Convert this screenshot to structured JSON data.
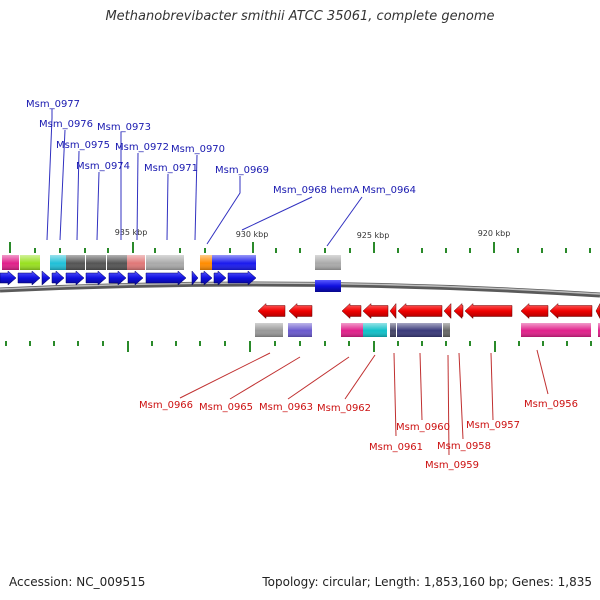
{
  "title": "Methanobrevibacter smithii ATCC 35061, complete genome",
  "footer": {
    "accession": "Accession: NC_009515",
    "topology": "Topology: circular; Length: 1,853,160 bp; Genes: 1,835"
  },
  "scale_labels": [
    "935 kbp",
    "930 kbp",
    "925 kbp",
    "920 kbp"
  ],
  "colors": {
    "forward_gene": "#1010e0",
    "reverse_gene": "#f00000",
    "forward_label": "#1a1ab0",
    "reverse_label": "#cc1111",
    "backbone": "#6a6a6a",
    "tick": "#2a8a2a"
  },
  "forward_labels": [
    "Msm_0977",
    "Msm_0976",
    "Msm_0975",
    "Msm_0973",
    "Msm_0974",
    "Msm_0972",
    "Msm_0970",
    "Msm_0971",
    "Msm_0969",
    "Msm_0968 hemA",
    "Msm_0964"
  ],
  "reverse_labels": [
    "Msm_0966",
    "Msm_0965",
    "Msm_0963",
    "Msm_0962",
    "Msm_0961",
    "Msm_0960",
    "Msm_0959",
    "Msm_0958",
    "Msm_0957",
    "Msm_0956"
  ]
}
